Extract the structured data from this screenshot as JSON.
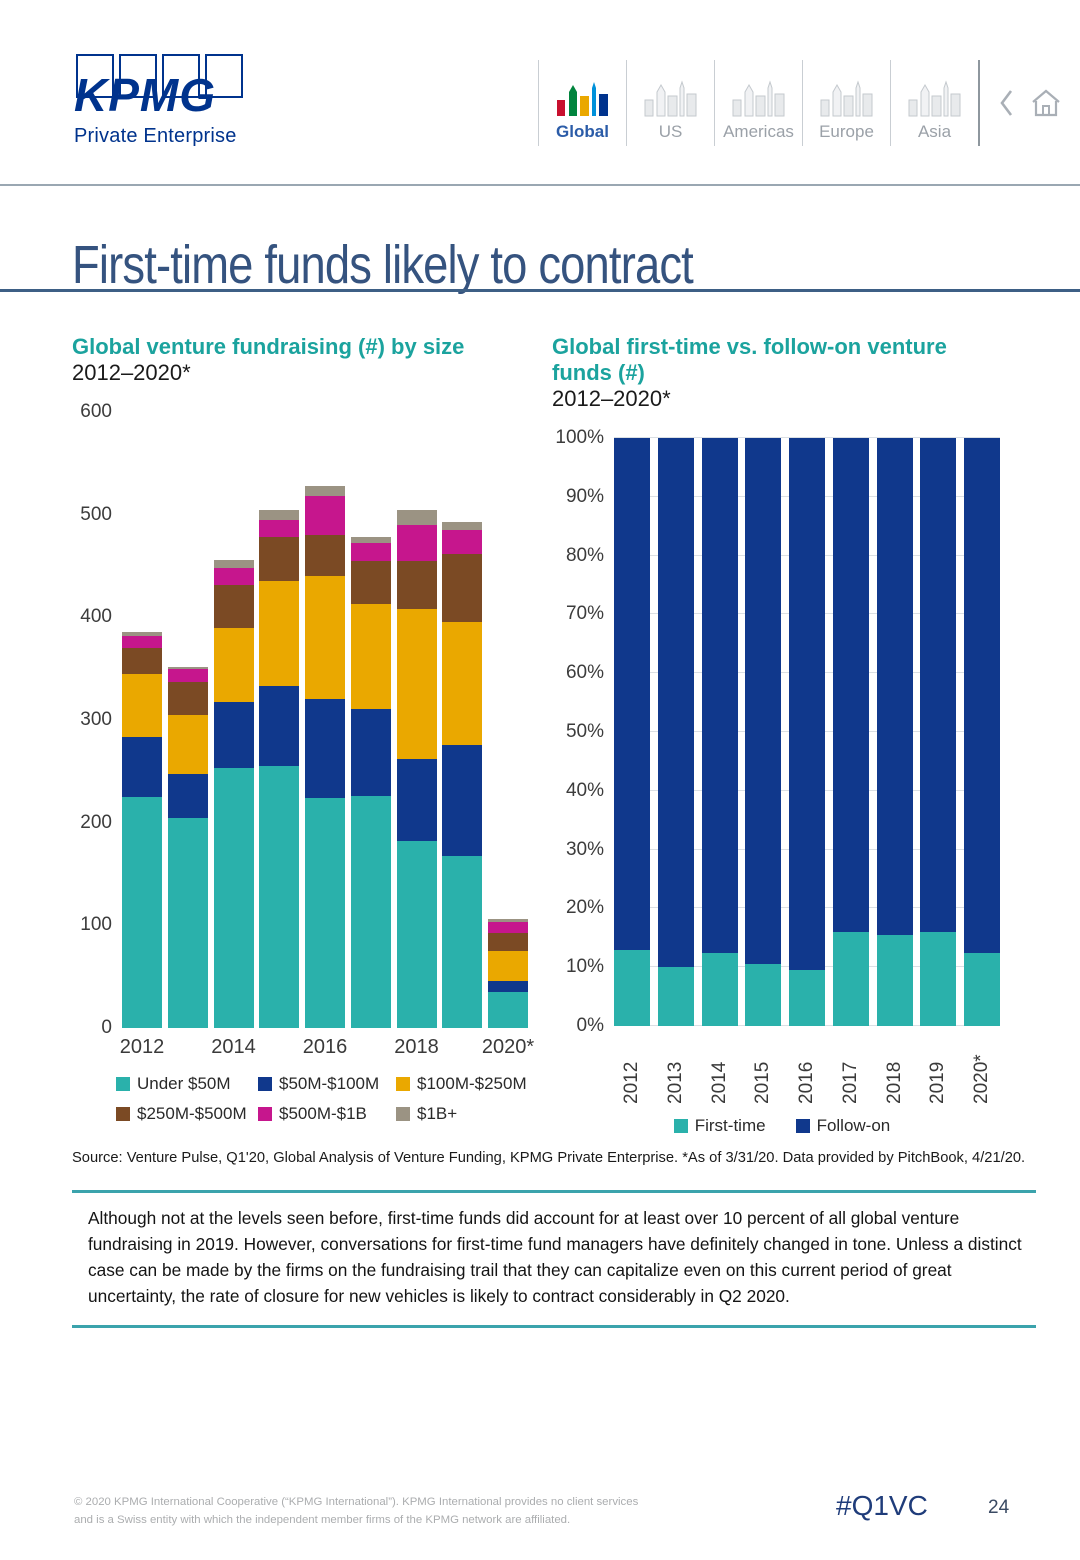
{
  "header": {
    "logo_text": "KPMG",
    "logo_subtext": "Private Enterprise",
    "nav": [
      {
        "label": "Global",
        "active": true
      },
      {
        "label": "US",
        "active": false
      },
      {
        "label": "Americas",
        "active": false
      },
      {
        "label": "Europe",
        "active": false
      },
      {
        "label": "Asia",
        "active": false
      }
    ]
  },
  "page_title": "First-time funds likely to contract",
  "colors": {
    "kpmg_navy": "#00338D",
    "heading_teal": "#1BA39E",
    "bar_teal": "#2AB1AB",
    "bar_blue": "#10388C",
    "bar_gold": "#EAA800",
    "bar_brown": "#7B4A24",
    "bar_magenta": "#C6168D",
    "bar_grey": "#9B9383",
    "rule_teal": "#3BA3AC"
  },
  "chart_data": [
    {
      "type": "bar",
      "stacked": true,
      "title": "Global venture fundraising (#) by size",
      "subtitle": "2012–2020*",
      "categories": [
        "2012",
        "2013",
        "2014",
        "2015",
        "2016",
        "2017",
        "2018",
        "2019",
        "2020*"
      ],
      "x_tick_labels_shown": [
        "2012",
        "2014",
        "2016",
        "2018",
        "2020*"
      ],
      "series": [
        {
          "name": "Under $50M",
          "color": "#2AB1AB",
          "values": [
            225,
            205,
            253,
            255,
            224,
            226,
            182,
            168,
            35
          ]
        },
        {
          "name": "$50M-$100M",
          "color": "#10388C",
          "values": [
            58,
            42,
            65,
            78,
            96,
            85,
            80,
            108,
            11
          ]
        },
        {
          "name": "$100M-$250M",
          "color": "#EAA800",
          "values": [
            62,
            58,
            72,
            102,
            120,
            102,
            146,
            119,
            29
          ]
        },
        {
          "name": "$250M-$500M",
          "color": "#7B4A24",
          "values": [
            25,
            32,
            42,
            43,
            40,
            42,
            47,
            67,
            18
          ]
        },
        {
          "name": "$500M-$1B",
          "color": "#C6168D",
          "values": [
            12,
            13,
            16,
            17,
            38,
            17,
            35,
            23,
            10
          ]
        },
        {
          "name": "$1B+",
          "color": "#9B9383",
          "values": [
            4,
            2,
            8,
            10,
            10,
            6,
            15,
            8,
            3
          ]
        }
      ],
      "ylim": [
        0,
        600
      ],
      "yticks": [
        0,
        100,
        200,
        300,
        400,
        500,
        600
      ],
      "ytick_labels": [
        "0",
        "100",
        "200",
        "300",
        "400",
        "500",
        "600"
      ],
      "grid": false,
      "legend_position": "bottom"
    },
    {
      "type": "bar",
      "stacked": true,
      "percent": true,
      "title": "Global first-time vs. follow-on venture funds (#)",
      "subtitle": "2012–2020*",
      "categories": [
        "2012",
        "2013",
        "2014",
        "2015",
        "2016",
        "2017",
        "2018",
        "2019",
        "2020*"
      ],
      "x_tick_labels_shown": [
        "2012",
        "2013",
        "2014",
        "2015",
        "2016",
        "2017",
        "2018",
        "2019",
        "2020*"
      ],
      "series": [
        {
          "name": "First-time",
          "color": "#2AB1AB",
          "values": [
            13,
            10,
            12.5,
            10.5,
            9.5,
            16,
            15.5,
            16,
            12.5
          ]
        },
        {
          "name": "Follow-on",
          "color": "#10388C",
          "values": [
            87,
            90,
            87.5,
            89.5,
            90.5,
            84,
            84.5,
            84,
            87.5
          ]
        }
      ],
      "ylim": [
        0,
        100
      ],
      "yticks": [
        0,
        10,
        20,
        30,
        40,
        50,
        60,
        70,
        80,
        90,
        100
      ],
      "ytick_labels": [
        "0%",
        "10%",
        "20%",
        "30%",
        "40%",
        "50%",
        "60%",
        "70%",
        "80%",
        "90%",
        "100%"
      ],
      "grid": true,
      "legend_position": "bottom"
    }
  ],
  "source_line": "Source: Venture Pulse, Q1'20, Global Analysis of Venture Funding, KPMG Private Enterprise. *As of 3/31/20. Data provided by PitchBook, 4/21/20.",
  "commentary": "Although not at the levels seen before, first-time funds did account for at least over 10 percent of all global venture fundraising in 2019. However, conversations for first-time fund managers have definitely changed in tone. Unless a distinct case can be made by the firms on the fundraising trail that they can capitalize even on this current period of great uncertainty, the rate of closure for new vehicles is likely to contract considerably in Q2 2020.",
  "footer": {
    "disclaimer": "© 2020 KPMG International Cooperative (“KPMG International”). KPMG International provides no client services and is a Swiss entity with which the independent member firms of the KPMG network are affiliated.",
    "hashtag": "#Q1VC",
    "page_number": "24"
  }
}
